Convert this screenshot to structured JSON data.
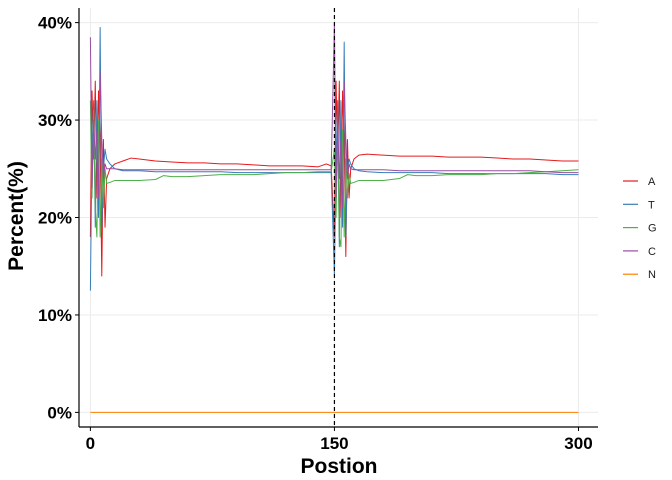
{
  "chart_data": {
    "type": "line",
    "title": "",
    "xlabel": "Postion",
    "ylabel": "Percent(%)",
    "xlim": [
      -7,
      312
    ],
    "ylim": [
      -1.5,
      41.5
    ],
    "x_ticks": [
      {
        "value": 0,
        "label": "0"
      },
      {
        "value": 150,
        "label": "150"
      },
      {
        "value": 300,
        "label": "300"
      }
    ],
    "y_ticks": [
      {
        "value": 0,
        "label": "0%"
      },
      {
        "value": 10,
        "label": "10%"
      },
      {
        "value": 20,
        "label": "20%"
      },
      {
        "value": 30,
        "label": "30%"
      },
      {
        "value": 40,
        "label": "40%"
      }
    ],
    "grid": true,
    "legend_position": "right",
    "vline": {
      "x": 150,
      "style": "dashed",
      "color": "#000000"
    },
    "series": [
      {
        "name": "A",
        "color": "#E41A1C",
        "points": [
          [
            0,
            18
          ],
          [
            1,
            33
          ],
          [
            2,
            26
          ],
          [
            3,
            34
          ],
          [
            4,
            22
          ],
          [
            5,
            33
          ],
          [
            6,
            28
          ],
          [
            7,
            14
          ],
          [
            8,
            28
          ],
          [
            9,
            19
          ],
          [
            10,
            24
          ],
          [
            12,
            25
          ],
          [
            15,
            25.5
          ],
          [
            20,
            25.8
          ],
          [
            25,
            26.1
          ],
          [
            30,
            26.0
          ],
          [
            40,
            25.8
          ],
          [
            50,
            25.7
          ],
          [
            60,
            25.6
          ],
          [
            70,
            25.6
          ],
          [
            80,
            25.5
          ],
          [
            90,
            25.5
          ],
          [
            100,
            25.4
          ],
          [
            110,
            25.3
          ],
          [
            120,
            25.3
          ],
          [
            130,
            25.3
          ],
          [
            140,
            25.2
          ],
          [
            145,
            25.5
          ],
          [
            148,
            25.3
          ],
          [
            150,
            18
          ],
          [
            151,
            34
          ],
          [
            152,
            26
          ],
          [
            153,
            34
          ],
          [
            154,
            20
          ],
          [
            155,
            33
          ],
          [
            156,
            28
          ],
          [
            157,
            16
          ],
          [
            158,
            28
          ],
          [
            159,
            22
          ],
          [
            160,
            25
          ],
          [
            162,
            26
          ],
          [
            165,
            26.4
          ],
          [
            170,
            26.5
          ],
          [
            180,
            26.4
          ],
          [
            190,
            26.3
          ],
          [
            200,
            26.3
          ],
          [
            210,
            26.3
          ],
          [
            220,
            26.2
          ],
          [
            230,
            26.2
          ],
          [
            240,
            26.2
          ],
          [
            250,
            26.1
          ],
          [
            260,
            26.0
          ],
          [
            270,
            26.0
          ],
          [
            280,
            25.9
          ],
          [
            290,
            25.8
          ],
          [
            300,
            25.8
          ]
        ]
      },
      {
        "name": "T",
        "color": "#377EB8",
        "points": [
          [
            0,
            12.5
          ],
          [
            1,
            27
          ],
          [
            2,
            32
          ],
          [
            3,
            19
          ],
          [
            4,
            32
          ],
          [
            5,
            20
          ],
          [
            6,
            39.5
          ],
          [
            7,
            19
          ],
          [
            8,
            25
          ],
          [
            9,
            27
          ],
          [
            10,
            26
          ],
          [
            12,
            25.5
          ],
          [
            15,
            25
          ],
          [
            20,
            24.8
          ],
          [
            30,
            24.8
          ],
          [
            40,
            24.7
          ],
          [
            50,
            24.7
          ],
          [
            60,
            24.7
          ],
          [
            70,
            24.7
          ],
          [
            80,
            24.7
          ],
          [
            90,
            24.6
          ],
          [
            100,
            24.6
          ],
          [
            110,
            24.6
          ],
          [
            120,
            24.6
          ],
          [
            130,
            24.6
          ],
          [
            140,
            24.6
          ],
          [
            148,
            24.6
          ],
          [
            150,
            14
          ],
          [
            151,
            26
          ],
          [
            152,
            32
          ],
          [
            153,
            17
          ],
          [
            154,
            32
          ],
          [
            155,
            19
          ],
          [
            156,
            38
          ],
          [
            157,
            18
          ],
          [
            158,
            25
          ],
          [
            159,
            26
          ],
          [
            160,
            25.5
          ],
          [
            162,
            25
          ],
          [
            165,
            24.8
          ],
          [
            170,
            24.7
          ],
          [
            180,
            24.6
          ],
          [
            190,
            24.6
          ],
          [
            200,
            24.6
          ],
          [
            210,
            24.6
          ],
          [
            220,
            24.5
          ],
          [
            230,
            24.5
          ],
          [
            240,
            24.5
          ],
          [
            250,
            24.5
          ],
          [
            260,
            24.5
          ],
          [
            270,
            24.5
          ],
          [
            280,
            24.5
          ],
          [
            290,
            24.4
          ],
          [
            300,
            24.4
          ]
        ]
      },
      {
        "name": "G",
        "color": "#4DAF4A",
        "points": [
          [
            0,
            32
          ],
          [
            1,
            22
          ],
          [
            2,
            31
          ],
          [
            3,
            21
          ],
          [
            4,
            18
          ],
          [
            5,
            30
          ],
          [
            6,
            18
          ],
          [
            7,
            26
          ],
          [
            8,
            21
          ],
          [
            9,
            25
          ],
          [
            10,
            23.5
          ],
          [
            12,
            23.6
          ],
          [
            15,
            23.8
          ],
          [
            20,
            23.8
          ],
          [
            30,
            23.8
          ],
          [
            40,
            23.9
          ],
          [
            45,
            24.3
          ],
          [
            50,
            24.2
          ],
          [
            60,
            24.2
          ],
          [
            70,
            24.3
          ],
          [
            80,
            24.4
          ],
          [
            90,
            24.4
          ],
          [
            100,
            24.4
          ],
          [
            110,
            24.5
          ],
          [
            120,
            24.6
          ],
          [
            130,
            24.6
          ],
          [
            140,
            24.7
          ],
          [
            148,
            24.7
          ],
          [
            150,
            27
          ],
          [
            151,
            20
          ],
          [
            152,
            29
          ],
          [
            153,
            18
          ],
          [
            154,
            17
          ],
          [
            155,
            29
          ],
          [
            156,
            18
          ],
          [
            157,
            26
          ],
          [
            158,
            22
          ],
          [
            159,
            24.5
          ],
          [
            160,
            23.5
          ],
          [
            162,
            23.6
          ],
          [
            165,
            23.8
          ],
          [
            170,
            23.8
          ],
          [
            180,
            23.8
          ],
          [
            190,
            24.0
          ],
          [
            195,
            24.4
          ],
          [
            200,
            24.3
          ],
          [
            210,
            24.3
          ],
          [
            220,
            24.4
          ],
          [
            230,
            24.4
          ],
          [
            240,
            24.4
          ],
          [
            250,
            24.5
          ],
          [
            260,
            24.5
          ],
          [
            270,
            24.6
          ],
          [
            280,
            24.7
          ],
          [
            290,
            24.8
          ],
          [
            300,
            24.9
          ]
        ]
      },
      {
        "name": "C",
        "color": "#984EA3",
        "points": [
          [
            0,
            38.5
          ],
          [
            1,
            23
          ],
          [
            2,
            30
          ],
          [
            3,
            26
          ],
          [
            4,
            29
          ],
          [
            5,
            22
          ],
          [
            6,
            35
          ],
          [
            7,
            28
          ],
          [
            8,
            24
          ],
          [
            9,
            25.5
          ],
          [
            10,
            25
          ],
          [
            12,
            25
          ],
          [
            15,
            25
          ],
          [
            20,
            24.9
          ],
          [
            30,
            24.9
          ],
          [
            40,
            24.9
          ],
          [
            50,
            24.9
          ],
          [
            60,
            24.9
          ],
          [
            70,
            24.9
          ],
          [
            80,
            24.9
          ],
          [
            90,
            24.9
          ],
          [
            100,
            24.9
          ],
          [
            110,
            24.9
          ],
          [
            120,
            24.9
          ],
          [
            130,
            24.9
          ],
          [
            140,
            24.9
          ],
          [
            148,
            24.9
          ],
          [
            150,
            40
          ],
          [
            151,
            22
          ],
          [
            152,
            30
          ],
          [
            153,
            24
          ],
          [
            154,
            28
          ],
          [
            155,
            21
          ],
          [
            156,
            34
          ],
          [
            157,
            28
          ],
          [
            158,
            24
          ],
          [
            159,
            25.5
          ],
          [
            160,
            25
          ],
          [
            162,
            24.9
          ],
          [
            165,
            24.9
          ],
          [
            170,
            24.9
          ],
          [
            180,
            24.9
          ],
          [
            190,
            24.8
          ],
          [
            200,
            24.8
          ],
          [
            210,
            24.8
          ],
          [
            220,
            24.8
          ],
          [
            230,
            24.8
          ],
          [
            240,
            24.8
          ],
          [
            250,
            24.8
          ],
          [
            260,
            24.8
          ],
          [
            270,
            24.8
          ],
          [
            280,
            24.7
          ],
          [
            290,
            24.6
          ],
          [
            300,
            24.6
          ]
        ]
      },
      {
        "name": "N",
        "color": "#FF7F00",
        "points": [
          [
            0,
            0
          ],
          [
            300,
            0
          ]
        ]
      }
    ]
  }
}
